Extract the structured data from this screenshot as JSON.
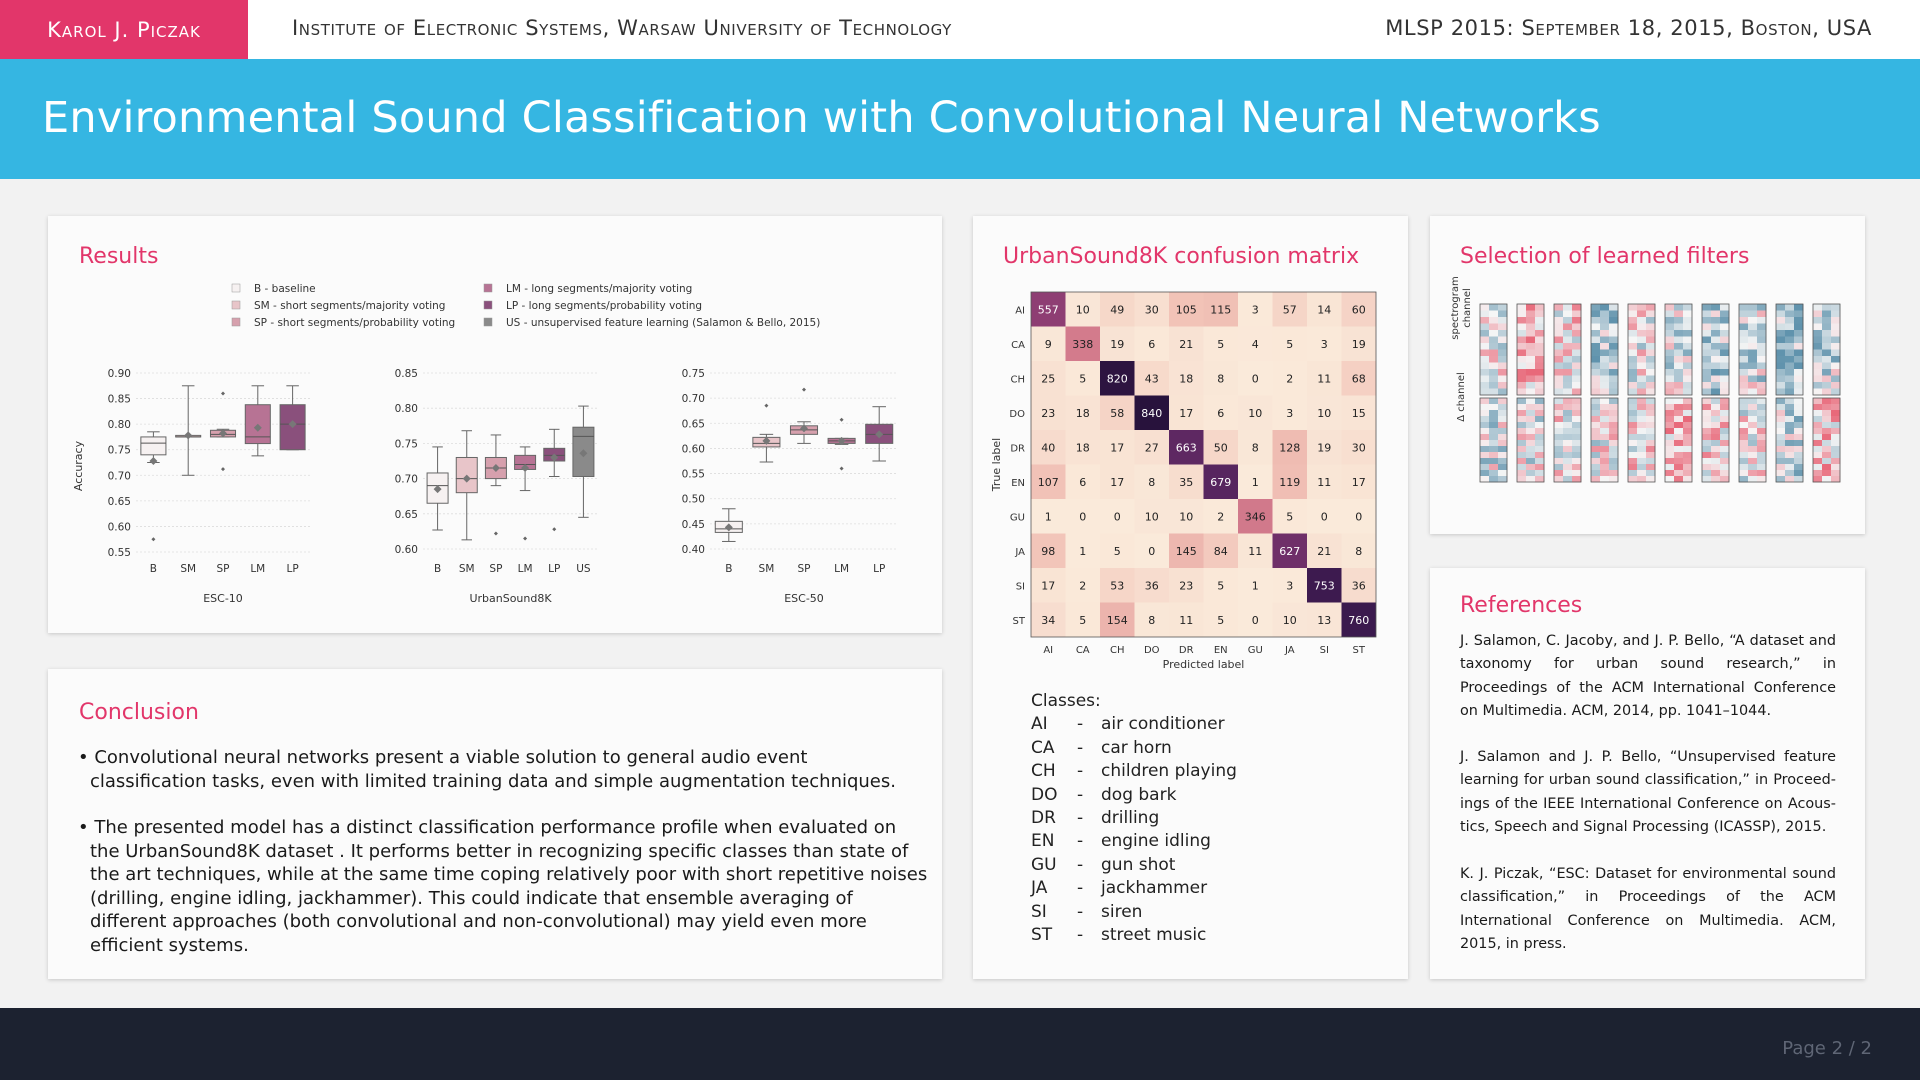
{
  "header": {
    "author": "Karol J. Piczak",
    "institution": "Institute of Electronic Systems, Warsaw University of Technology",
    "conference": "MLSP 2015: September 18, 2015, Boston, USA"
  },
  "title": "Environmental Sound Classification with Convolutional Neural Networks",
  "results": {
    "heading": "Results",
    "legend": [
      {
        "label": "B - baseline",
        "color": "#f6f1f1"
      },
      {
        "label": "SM - short segments/majority voting",
        "color": "#e8c5c9"
      },
      {
        "label": "SP - short segments/probability voting",
        "color": "#d6a0ad"
      },
      {
        "label": "LM - long segments/majority voting",
        "color": "#b77394"
      },
      {
        "label": "LP - long segments/probability voting",
        "color": "#8a507c"
      },
      {
        "label": "US - unsupervised feature learning (Salamon & Bello, 2015)",
        "color": "#8a8a8a"
      }
    ],
    "ylabel": "Accuracy"
  },
  "chart_data": [
    {
      "type": "box",
      "title": "ESC-10",
      "ylabel": "Accuracy",
      "ylim": [
        0.55,
        0.9
      ],
      "yticks": [
        "0.55",
        "0.60",
        "0.65",
        "0.70",
        "0.75",
        "0.80",
        "0.85",
        "0.90"
      ],
      "categories": [
        "B",
        "SM",
        "SP",
        "LM",
        "LP"
      ],
      "boxes": [
        {
          "min": 0.725,
          "q1": 0.74,
          "median": 0.763,
          "q3": 0.775,
          "max": 0.785,
          "mean": 0.728,
          "outliers": [
            0.575
          ]
        },
        {
          "min": 0.7,
          "q1": 0.775,
          "median": 0.775,
          "q3": 0.778,
          "max": 0.875,
          "mean": 0.778,
          "outliers": []
        },
        {
          "min": 0.775,
          "q1": 0.775,
          "median": 0.78,
          "q3": 0.788,
          "max": 0.79,
          "mean": 0.782,
          "outliers": [
            0.86,
            0.712
          ]
        },
        {
          "min": 0.738,
          "q1": 0.762,
          "median": 0.775,
          "q3": 0.838,
          "max": 0.875,
          "mean": 0.793,
          "outliers": []
        },
        {
          "min": 0.75,
          "q1": 0.75,
          "median": 0.8,
          "q3": 0.838,
          "max": 0.875,
          "mean": 0.8,
          "outliers": []
        }
      ]
    },
    {
      "type": "box",
      "title": "UrbanSound8K",
      "ylim": [
        0.6,
        0.85
      ],
      "yticks": [
        "0.60",
        "0.65",
        "0.70",
        "0.75",
        "0.80",
        "0.85"
      ],
      "categories": [
        "B",
        "SM",
        "SP",
        "LM",
        "LP",
        "US"
      ],
      "boxes": [
        {
          "min": 0.627,
          "q1": 0.665,
          "median": 0.69,
          "q3": 0.708,
          "max": 0.745,
          "mean": 0.685,
          "outliers": []
        },
        {
          "min": 0.613,
          "q1": 0.68,
          "median": 0.7,
          "q3": 0.73,
          "max": 0.768,
          "mean": 0.7,
          "outliers": []
        },
        {
          "min": 0.69,
          "q1": 0.7,
          "median": 0.715,
          "q3": 0.73,
          "max": 0.762,
          "mean": 0.715,
          "outliers": [
            0.622
          ]
        },
        {
          "min": 0.683,
          "q1": 0.713,
          "median": 0.72,
          "q3": 0.733,
          "max": 0.745,
          "mean": 0.715,
          "outliers": [
            0.615
          ]
        },
        {
          "min": 0.703,
          "q1": 0.725,
          "median": 0.733,
          "q3": 0.743,
          "max": 0.77,
          "mean": 0.73,
          "outliers": [
            0.628
          ]
        },
        {
          "min": 0.645,
          "q1": 0.703,
          "median": 0.76,
          "q3": 0.773,
          "max": 0.803,
          "mean": 0.736,
          "outliers": []
        }
      ]
    },
    {
      "type": "box",
      "title": "ESC-50",
      "ylim": [
        0.4,
        0.75
      ],
      "yticks": [
        "0.40",
        "0.45",
        "0.50",
        "0.55",
        "0.60",
        "0.65",
        "0.70",
        "0.75"
      ],
      "categories": [
        "B",
        "SM",
        "SP",
        "LM",
        "LP"
      ],
      "boxes": [
        {
          "min": 0.415,
          "q1": 0.433,
          "median": 0.44,
          "q3": 0.455,
          "max": 0.48,
          "mean": 0.443,
          "outliers": []
        },
        {
          "min": 0.573,
          "q1": 0.603,
          "median": 0.61,
          "q3": 0.622,
          "max": 0.628,
          "mean": 0.615,
          "outliers": [
            0.685
          ]
        },
        {
          "min": 0.61,
          "q1": 0.628,
          "median": 0.637,
          "q3": 0.645,
          "max": 0.653,
          "mean": 0.64,
          "outliers": [
            0.717
          ]
        },
        {
          "min": 0.608,
          "q1": 0.61,
          "median": 0.615,
          "q3": 0.62,
          "max": 0.62,
          "mean": 0.615,
          "outliers": [
            0.657,
            0.56
          ]
        },
        {
          "min": 0.575,
          "q1": 0.61,
          "median": 0.628,
          "q3": 0.648,
          "max": 0.683,
          "mean": 0.628,
          "outliers": []
        }
      ]
    },
    {
      "type": "heatmap",
      "title": "UrbanSound8K confusion matrix",
      "xlabel": "Predicted label",
      "ylabel": "True label",
      "labels": [
        "AI",
        "CA",
        "CH",
        "DO",
        "DR",
        "EN",
        "GU",
        "JA",
        "SI",
        "ST"
      ],
      "matrix": [
        [
          557,
          10,
          49,
          30,
          105,
          115,
          3,
          57,
          14,
          60
        ],
        [
          9,
          338,
          19,
          6,
          21,
          5,
          4,
          5,
          3,
          19
        ],
        [
          25,
          5,
          820,
          43,
          18,
          8,
          0,
          2,
          11,
          68
        ],
        [
          23,
          18,
          58,
          840,
          17,
          6,
          10,
          3,
          10,
          15
        ],
        [
          40,
          18,
          17,
          27,
          663,
          50,
          8,
          128,
          19,
          30
        ],
        [
          107,
          6,
          17,
          8,
          35,
          679,
          1,
          119,
          11,
          17
        ],
        [
          1,
          0,
          0,
          10,
          10,
          2,
          346,
          5,
          0,
          0
        ],
        [
          98,
          1,
          5,
          0,
          145,
          84,
          11,
          627,
          21,
          8
        ],
        [
          17,
          2,
          53,
          36,
          23,
          5,
          1,
          3,
          753,
          36
        ],
        [
          34,
          5,
          154,
          8,
          11,
          5,
          0,
          10,
          13,
          760
        ]
      ]
    }
  ],
  "conclusion": {
    "heading": "Conclusion",
    "bullets": [
      "• Convolutional neural networks present a viable solution to general audio event classification tasks, even with limited training data and simple augmentation techniques.",
      "• The presented model has a distinct classification performance profile when evaluated on the Urban­Sound8K dataset . It performs better in recognizing specific classes than state of the art techniques, while at the same time coping relatively poor with short repetitive noises (drilling, engine idling, jackhammer). This could indicate that ensemble averaging of different approaches (both convolutional and non-convolutional) may yield even more efficient systems."
    ]
  },
  "matrix_panel": {
    "heading": "UrbanSound8K confusion matrix",
    "classes_heading": "Classes:",
    "classes": [
      {
        "abbr": "AI",
        "name": "air conditioner"
      },
      {
        "abbr": "CA",
        "name": "car horn"
      },
      {
        "abbr": "CH",
        "name": "children playing"
      },
      {
        "abbr": "DO",
        "name": "dog bark"
      },
      {
        "abbr": "DR",
        "name": "drilling"
      },
      {
        "abbr": "EN",
        "name": "engine idling"
      },
      {
        "abbr": "GU",
        "name": "gun shot"
      },
      {
        "abbr": "JA",
        "name": "jackhammer"
      },
      {
        "abbr": "SI",
        "name": "siren"
      },
      {
        "abbr": "ST",
        "name": "street music"
      }
    ]
  },
  "filters": {
    "heading": "Selection of learned filters",
    "row1_label_line1": "spectrogram",
    "row1_label_line2": "channel",
    "row2_label": "Δ channel"
  },
  "references": {
    "heading": "References",
    "items": [
      "J. Salamon, C. Jacoby, and J. P. Bello, “A dataset and taxonomy for urban sound research,” in Proceedings of the ACM International Conference on Multimedia. ACM, 2014, pp. 1041–1044.",
      "J. Salamon and J. P. Bello, “Unsupervised feature learning for urban sound classification,” in Proceed­ings of the IEEE International Conference on Acous­tics, Speech and Signal Processing (ICASSP), 2015.",
      "K. J. Piczak, “ESC: Dataset for environmental sound classification,” in Proceedings of the ACM Internation­al Conference on Multimedia. ACM, 2015, in press."
    ]
  },
  "footer": {
    "page": "Page 2 / 2"
  }
}
